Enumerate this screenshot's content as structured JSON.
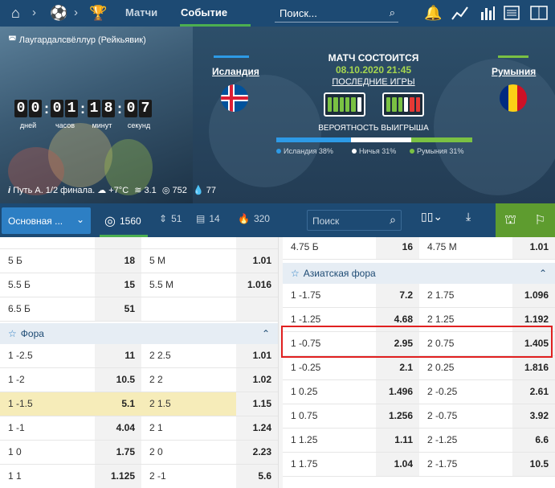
{
  "nav": {
    "tabs": [
      "Матчи",
      "Событие"
    ],
    "search_placeholder": "Поиск..."
  },
  "hero": {
    "venue": "Лаугардалсвёллур (Рейкьявик)",
    "timer_digits": [
      "0",
      "0",
      "0",
      "1",
      "1",
      "8",
      "0",
      "7"
    ],
    "timer_labels": [
      "дней",
      "часов",
      "минут",
      "секунд"
    ],
    "home_team": "Исландия",
    "away_team": "Румыния",
    "status": "МАТЧ СОСТОИТСЯ",
    "datetime": "08.10.2020 21:45",
    "last_games": "ПОСЛЕДНИЕ ИГРЫ",
    "win_prob_title": "ВЕРОЯТНОСТЬ ВЫИГРЫША",
    "prob": [
      {
        "label": "Исландия 38%",
        "value": 38,
        "color": "#2d9ae6"
      },
      {
        "label": "Ничья 31%",
        "value": 31,
        "color": "#ffffff"
      },
      {
        "label": "Румыния 31%",
        "value": 31,
        "color": "#7ac143"
      }
    ],
    "home_form": [
      "#7ac143",
      "#7ac143",
      "#7ac143",
      "#7ac143",
      "#7ac143",
      "#ffffff"
    ],
    "away_form": [
      "#7ac143",
      "#7ac143",
      "#7ac143",
      "#ffffff",
      "#e53935",
      "#e53935"
    ],
    "info": "Путь А. 1/2 финала.",
    "temp": "+7°C",
    "wind": "3.1",
    "pressure": "752",
    "humidity": "77"
  },
  "subbar": {
    "market_select": "Основная ...",
    "stats": [
      "1560",
      "51",
      "14",
      "320"
    ],
    "search_placeholder": "Поиск"
  },
  "left": {
    "top_rows": [
      {
        "l1": "",
        "o1": "",
        "l2": "",
        "o2": ""
      },
      {
        "l1": "5 Б",
        "o1": "18",
        "l2": "5 М",
        "o2": "1.01"
      },
      {
        "l1": "5.5 Б",
        "o1": "15",
        "l2": "5.5 М",
        "o2": "1.016"
      },
      {
        "l1": "6.5 Б",
        "o1": "51",
        "l2": "",
        "o2": ""
      }
    ],
    "section": "Фора",
    "rows": [
      {
        "l1": "1 -2.5",
        "o1": "11",
        "l2": "2 2.5",
        "o2": "1.01",
        "hl": false
      },
      {
        "l1": "1 -2",
        "o1": "10.5",
        "l2": "2 2",
        "o2": "1.02",
        "hl": false
      },
      {
        "l1": "1 -1.5",
        "o1": "5.1",
        "l2": "2 1.5",
        "o2": "1.15",
        "hl": true
      },
      {
        "l1": "1 -1",
        "o1": "4.04",
        "l2": "2 1",
        "o2": "1.24",
        "hl": false
      },
      {
        "l1": "1 0",
        "o1": "1.75",
        "l2": "2 0",
        "o2": "2.23",
        "hl": false
      },
      {
        "l1": "1 1",
        "o1": "1.125",
        "l2": "2 -1",
        "o2": "5.6",
        "hl": false
      }
    ]
  },
  "right": {
    "top_row": {
      "l1": "4.75 Б",
      "o1": "16",
      "l2": "4.75 М",
      "o2": "1.01"
    },
    "section": "Азиатская фора",
    "rows": [
      {
        "l1": "1 -1.75",
        "o1": "7.2",
        "l2": "2 1.75",
        "o2": "1.096"
      },
      {
        "l1": "1 -1.25",
        "o1": "4.68",
        "l2": "2 1.25",
        "o2": "1.192"
      },
      {
        "l1": "1 -0.75",
        "o1": "2.95",
        "l2": "2 0.75",
        "o2": "1.405"
      },
      {
        "l1": "1 -0.25",
        "o1": "2.1",
        "l2": "2 0.25",
        "o2": "1.816"
      },
      {
        "l1": "1 0.25",
        "o1": "1.496",
        "l2": "2 -0.25",
        "o2": "2.61"
      },
      {
        "l1": "1 0.75",
        "o1": "1.256",
        "l2": "2 -0.75",
        "o2": "3.92"
      },
      {
        "l1": "1 1.25",
        "o1": "1.11",
        "l2": "2 -1.25",
        "o2": "6.6"
      },
      {
        "l1": "1 1.75",
        "o1": "1.04",
        "l2": "2 -1.75",
        "o2": "10.5"
      }
    ]
  }
}
